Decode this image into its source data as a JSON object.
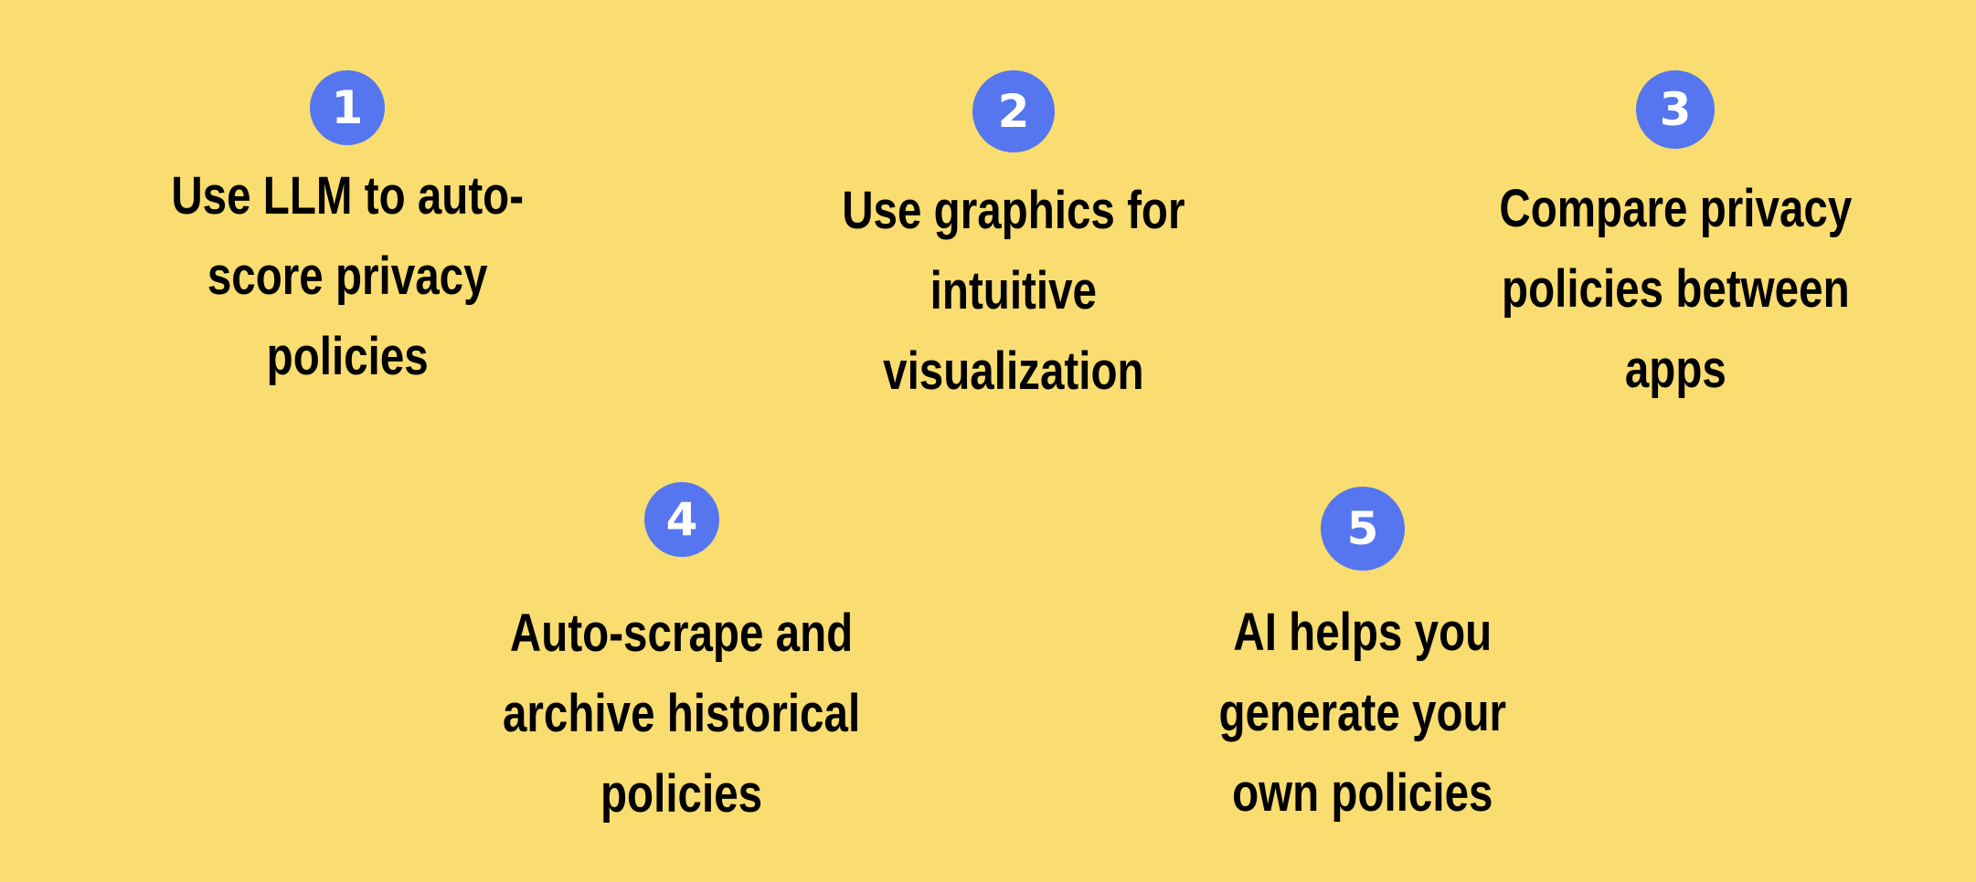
{
  "background_color": "#f9dd70",
  "badge_color": "#5576ef",
  "items": [
    {
      "number": "1",
      "lines": [
        "Use LLM to auto-",
        "score privacy",
        "policies"
      ]
    },
    {
      "number": "2",
      "lines": [
        "Use graphics for",
        "intuitive",
        "visualization"
      ]
    },
    {
      "number": "3",
      "lines": [
        "Compare privacy",
        "policies between",
        "apps"
      ]
    },
    {
      "number": "4",
      "lines": [
        "Auto-scrape and",
        "archive historical",
        "policies"
      ]
    },
    {
      "number": "5",
      "lines": [
        "AI helps you",
        "generate your",
        "own policies"
      ]
    }
  ]
}
